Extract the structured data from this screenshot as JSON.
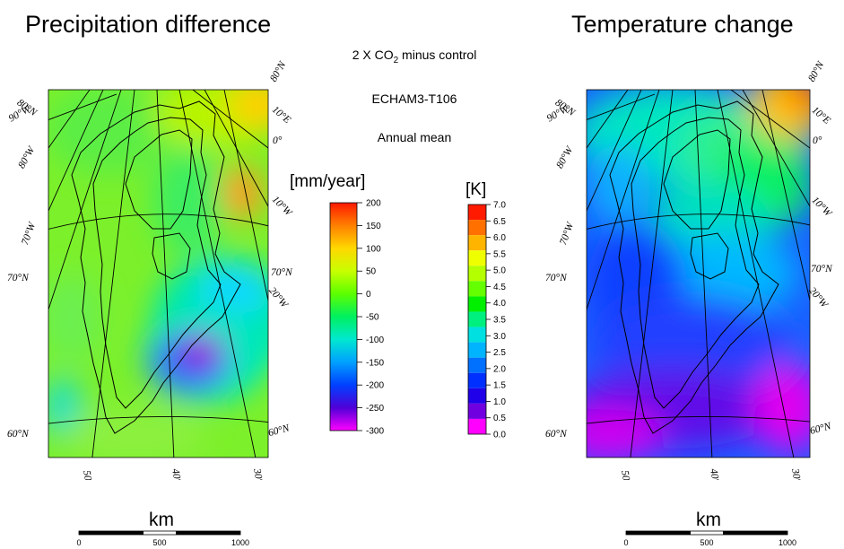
{
  "titles": {
    "left": "Precipitation difference",
    "right": "Temperature change"
  },
  "info": {
    "experiment_prefix": "2 X CO",
    "experiment_sub": "2",
    "experiment_suffix": " minus control",
    "model": "ECHAM3-T106",
    "period": "Annual mean"
  },
  "precip_colorbar": {
    "unit": "[mm/year]",
    "ticks": [
      "200",
      "150",
      "100",
      "50",
      "0",
      "-50",
      "-100",
      "-150",
      "-200",
      "-250",
      "-300"
    ],
    "colors": [
      "#ff2000",
      "#ff8000",
      "#ffd400",
      "#c8ff00",
      "#5cff00",
      "#00f060",
      "#00e8d0",
      "#00a0ff",
      "#0040ff",
      "#4000d8",
      "#b000e0",
      "#ff00ff"
    ]
  },
  "temp_colorbar": {
    "unit": "[K]",
    "ticks": [
      "7.0",
      "6.5",
      "6.0",
      "5.5",
      "5.0",
      "4.5",
      "4.0",
      "3.5",
      "3.0",
      "2.5",
      "2.0",
      "1.5",
      "1.0",
      "0.5",
      "0.0"
    ],
    "colors": [
      "#ff1a00",
      "#ff7000",
      "#ffb400",
      "#f0ff00",
      "#b4ff00",
      "#64ff00",
      "#00f000",
      "#00f080",
      "#00e0e0",
      "#00b4ff",
      "#0070ff",
      "#0030ff",
      "#2000e8",
      "#7000e0",
      "#ff00ff"
    ]
  },
  "graticule_labels": {
    "lat_80": "80°N",
    "lat_70": "70°N",
    "lat_60": "60°N",
    "lon_10e": "10°E",
    "lon_0": "0°",
    "lon_10w": "10°W",
    "lon_20w": "20°W",
    "lon_30w": "30°W",
    "lon_40w": "40°W",
    "lon_50w": "50°W",
    "lon_70w": "70°W",
    "lon_80w": "80°W",
    "lon_90w": "90°W"
  },
  "scale": {
    "label": "km",
    "ticks": [
      "0",
      "500",
      "1000"
    ]
  }
}
